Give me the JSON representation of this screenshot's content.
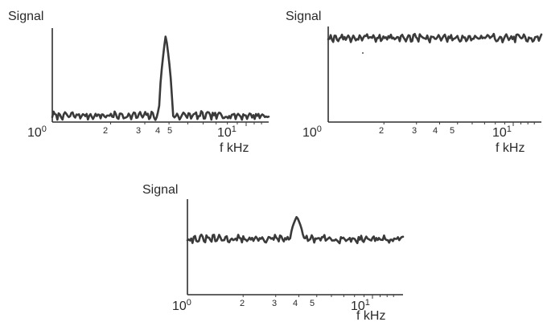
{
  "chart_data": [
    {
      "type": "line",
      "ylabel": "Signal",
      "xlabel": "f  kHz",
      "x_scale": "log",
      "x_range": [
        1,
        16
      ],
      "x_tick_labels": [
        "10",
        "2",
        "3",
        "4",
        "5",
        "10"
      ],
      "x_tick_exponents": [
        "0",
        "",
        "",
        "",
        "",
        "1"
      ],
      "series": [
        {
          "baseline": 0.07,
          "peaks": [
            {
              "x": 3.85,
              "height": 0.95
            }
          ]
        }
      ]
    },
    {
      "type": "line",
      "ylabel": "Signal",
      "xlabel": "f  kHz",
      "x_scale": "log",
      "x_range": [
        1,
        16
      ],
      "x_tick_labels": [
        "10",
        "2",
        "3",
        "4",
        "5",
        "10"
      ],
      "x_tick_exponents": [
        "0",
        "",
        "",
        "",
        "",
        "1"
      ],
      "series": [
        {
          "baseline": 0.92,
          "peaks": []
        }
      ]
    },
    {
      "type": "line",
      "ylabel": "Signal",
      "xlabel": "f  kHz",
      "x_scale": "log",
      "x_range": [
        1,
        16
      ],
      "x_tick_labels": [
        "10",
        "2",
        "3",
        "4",
        "5",
        "10"
      ],
      "x_tick_exponents": [
        "0",
        "",
        "",
        "",
        "",
        "1"
      ],
      "series": [
        {
          "baseline": 0.62,
          "peaks": [
            {
              "x": 3.9,
              "height": 0.87
            }
          ]
        }
      ]
    }
  ]
}
